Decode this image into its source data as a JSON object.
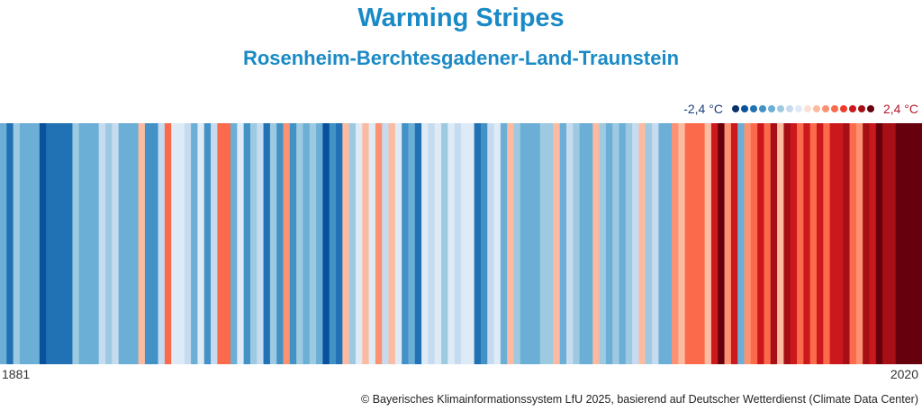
{
  "title": "Warming Stripes",
  "subtitle": "Rosenheim-Berchtesgadener-Land-Traunstein",
  "legend": {
    "min_label": "-2,4 °C",
    "max_label": "2,4 °C",
    "colors": [
      "#08306b",
      "#08519c",
      "#2171b5",
      "#4292c6",
      "#6baed6",
      "#9ecae1",
      "#c6dbef",
      "#deebf7",
      "#fee0d2",
      "#fcbba1",
      "#fc9272",
      "#fb6a4a",
      "#ef3b2c",
      "#cb181d",
      "#a50f15",
      "#67000d"
    ]
  },
  "chart_data": {
    "type": "heatmap",
    "title": "Warming Stripes",
    "subtitle": "Rosenheim-Berchtesgadener-Land-Traunstein",
    "x_start": 1881,
    "x_end": 2020,
    "x_tick_labels": [
      "1881",
      "2020"
    ],
    "color_scale_min": -2.4,
    "color_scale_max": 2.4,
    "unit": "°C",
    "values": [
      -1.1,
      -1.6,
      -0.8,
      -1.1,
      -1.1,
      -1.1,
      -2.0,
      -1.7,
      -1.7,
      -1.7,
      -1.7,
      -0.8,
      -1.1,
      -1.1,
      -1.1,
      -0.5,
      -0.8,
      -0.5,
      -1.1,
      -1.1,
      -1.1,
      0.3,
      -1.4,
      -1.4,
      -0.5,
      1.0,
      -0.3,
      -0.3,
      -0.5,
      -1.1,
      -0.3,
      -1.4,
      -0.5,
      1.0,
      1.0,
      -1.1,
      -0.3,
      -1.4,
      -0.8,
      -0.5,
      -1.7,
      -0.8,
      -1.4,
      0.7,
      -1.4,
      -0.8,
      -1.1,
      -0.8,
      -1.1,
      -2.0,
      -1.4,
      -1.7,
      0.3,
      -0.8,
      -0.3,
      0.3,
      -0.3,
      0.7,
      -0.5,
      0.3,
      -0.3,
      -1.4,
      -1.1,
      -1.7,
      -0.3,
      -0.5,
      -0.3,
      -0.8,
      -0.3,
      -0.5,
      -0.3,
      -0.3,
      -1.7,
      -1.4,
      -0.5,
      -0.3,
      -1.1,
      0.3,
      -0.8,
      -1.1,
      -1.1,
      -1.1,
      -0.8,
      -0.8,
      0.3,
      -1.1,
      -0.5,
      -0.8,
      -1.1,
      -1.1,
      0.3,
      -0.8,
      -1.1,
      -0.8,
      -1.1,
      -0.8,
      -0.5,
      0.3,
      -0.8,
      -0.5,
      -1.1,
      -1.1,
      0.7,
      0.3,
      1.0,
      1.0,
      1.0,
      0.3,
      1.5,
      2.1,
      0.7,
      1.5,
      -1.1,
      0.7,
      1.0,
      1.5,
      1.0,
      1.8,
      0.3,
      1.8,
      1.5,
      1.0,
      1.5,
      1.0,
      1.5,
      1.0,
      1.5,
      1.5,
      1.8,
      1.0,
      0.7,
      1.8,
      1.5,
      2.1,
      1.8,
      1.8,
      2.1,
      2.1,
      2.1,
      2.1
    ]
  }
}
